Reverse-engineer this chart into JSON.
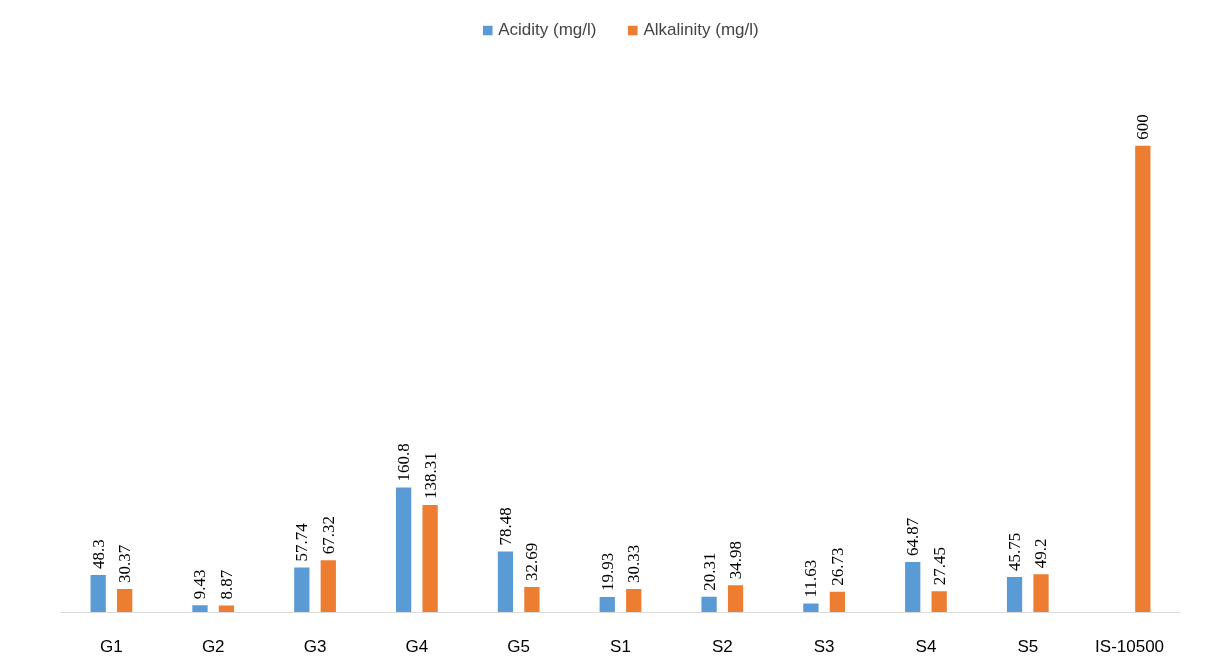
{
  "chart_data": {
    "type": "bar",
    "categories": [
      "G1",
      "G2",
      "G3",
      "G4",
      "G5",
      "S1",
      "S2",
      "S3",
      "S4",
      "S5",
      "IS-10500"
    ],
    "series": [
      {
        "name": "Acidity (mg/l)",
        "color": "#5b9bd5",
        "values": [
          48.3,
          9.43,
          57.74,
          160.8,
          78.48,
          19.93,
          20.31,
          11.63,
          64.87,
          45.75,
          null
        ]
      },
      {
        "name": "Alkalinity (mg/l)",
        "color": "#ed7d31",
        "values": [
          30.37,
          8.87,
          67.32,
          138.31,
          32.69,
          30.33,
          34.98,
          26.73,
          27.45,
          49.2,
          600
        ]
      }
    ],
    "data_labels": true,
    "legend": "top",
    "grid": false,
    "tick_labels": "x"
  }
}
